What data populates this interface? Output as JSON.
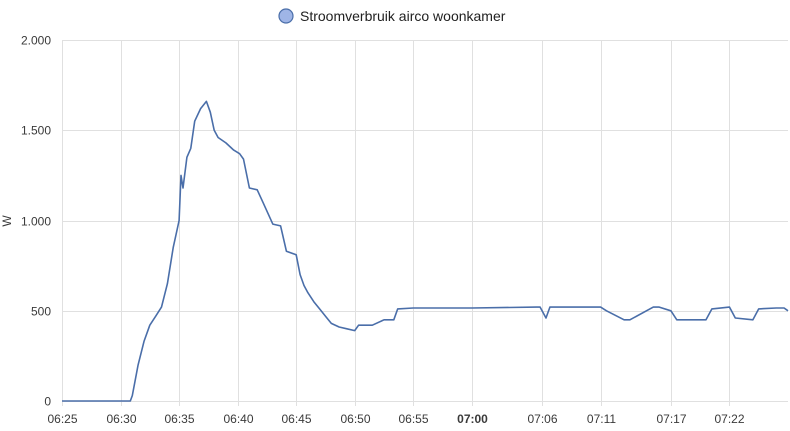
{
  "chart_data": {
    "type": "line",
    "ylabel": "W",
    "ylim": [
      0,
      2000
    ],
    "yticks": [
      {
        "value": 0,
        "label": "0"
      },
      {
        "value": 500,
        "label": "500"
      },
      {
        "value": 1000,
        "label": "1.000"
      },
      {
        "value": 1500,
        "label": "1.500"
      },
      {
        "value": 2000,
        "label": "2.000"
      }
    ],
    "xlim": [
      "06:25",
      "07:27"
    ],
    "xticks": [
      {
        "value": "06:25",
        "label": "06:25",
        "bold": false
      },
      {
        "value": "06:30",
        "label": "06:30",
        "bold": false
      },
      {
        "value": "06:35",
        "label": "06:35",
        "bold": false
      },
      {
        "value": "06:40",
        "label": "06:40",
        "bold": false
      },
      {
        "value": "06:45",
        "label": "06:45",
        "bold": false
      },
      {
        "value": "06:50",
        "label": "06:50",
        "bold": false
      },
      {
        "value": "06:55",
        "label": "06:55",
        "bold": false
      },
      {
        "value": "07:00",
        "label": "07:00",
        "bold": true
      },
      {
        "value": "07:06",
        "label": "07:06",
        "bold": false
      },
      {
        "value": "07:11",
        "label": "07:11",
        "bold": false
      },
      {
        "value": "07:17",
        "label": "07:17",
        "bold": false
      },
      {
        "value": "07:22",
        "label": "07:22",
        "bold": false
      }
    ],
    "grid": true,
    "legend_position": "top",
    "series": [
      {
        "name": "Stroomverbruik airco woonkamer",
        "color": "#4a6ea9",
        "legend_fill": "#9fb5e6",
        "x": [
          "06:25",
          "06:30:50",
          "06:31:00",
          "06:31:30",
          "06:32:00",
          "06:32:30",
          "06:33:00",
          "06:33:30",
          "06:34:00",
          "06:34:30",
          "06:35:00",
          "06:35:10",
          "06:35:20",
          "06:35:40",
          "06:36:00",
          "06:36:20",
          "06:36:50",
          "06:37:20",
          "06:37:40",
          "06:38:00",
          "06:38:20",
          "06:39:00",
          "06:39:40",
          "06:40:10",
          "06:40:30",
          "06:41:00",
          "06:41:40",
          "06:42:10",
          "06:43:00",
          "06:43:40",
          "06:44:10",
          "06:45:00",
          "06:45:20",
          "06:45:40",
          "06:46:00",
          "06:46:30",
          "06:47:00",
          "06:47:30",
          "06:48:00",
          "06:48:40",
          "06:49:20",
          "06:50:00",
          "06:50:20",
          "06:51:30",
          "06:52:30",
          "06:53:20",
          "06:53:40",
          "06:55:00",
          "07:00:00",
          "07:05:30",
          "07:05:50",
          "07:06:20",
          "07:06:40",
          "07:11:00",
          "07:11:30",
          "07:13:00",
          "07:13:30",
          "07:15:30",
          "07:16:00",
          "07:17:00",
          "07:17:30",
          "07:20:00",
          "07:20:30",
          "07:22:00",
          "07:22:30",
          "07:24:00",
          "07:24:30",
          "07:26:00",
          "07:26:40",
          "07:27:00"
        ],
        "y": [
          0,
          0,
          30,
          200,
          330,
          420,
          470,
          520,
          650,
          850,
          1000,
          1250,
          1180,
          1350,
          1400,
          1550,
          1620,
          1660,
          1600,
          1500,
          1460,
          1430,
          1390,
          1370,
          1340,
          1180,
          1170,
          1100,
          980,
          970,
          830,
          810,
          700,
          640,
          600,
          550,
          510,
          470,
          430,
          410,
          400,
          390,
          420,
          420,
          450,
          450,
          510,
          515,
          515,
          520,
          520,
          460,
          520,
          520,
          500,
          450,
          450,
          520,
          520,
          500,
          450,
          450,
          510,
          520,
          460,
          450,
          510,
          515,
          515,
          500
        ]
      }
    ]
  }
}
